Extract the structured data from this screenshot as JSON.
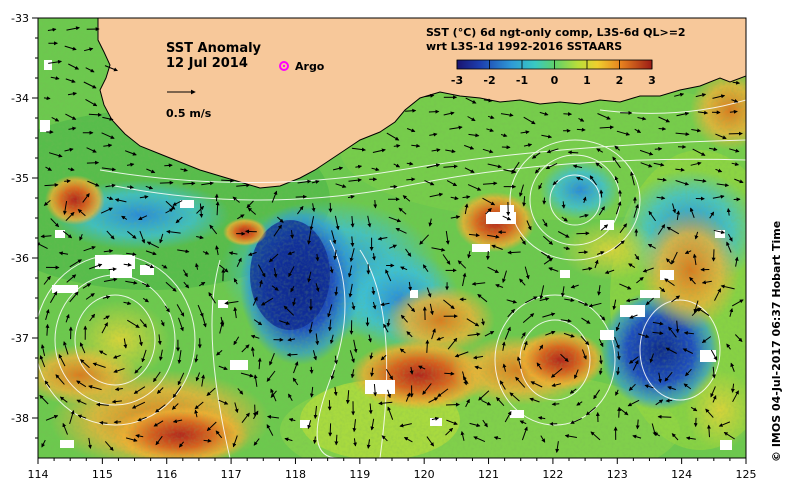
{
  "map": {
    "title": "SST Anomaly",
    "date": "12 Jul 2014",
    "argo_label": "Argo",
    "scale_label": "0.5 m/s",
    "colorbar_title_line1": "SST (°C) 6d ngt-only comp, L3S-6d QL>=2",
    "colorbar_title_line2": "wrt L3S-1d 1992-2016 SSTAARS",
    "colorbar_ticks": [
      "-3",
      "-2",
      "-1",
      "0",
      "1",
      "2",
      "3"
    ],
    "credit": "© IMOS 04-Jul-2017 06:37 Hobart Time",
    "lon_ticks": [
      "114",
      "115",
      "116",
      "117",
      "118",
      "119",
      "120",
      "121",
      "122",
      "123",
      "124",
      "125"
    ],
    "lat_ticks": [
      "-33",
      "-34",
      "-35",
      "-36",
      "-37",
      "-38"
    ],
    "colors": {
      "land": "#f7c89a",
      "argo_marker": "#ff00ff"
    },
    "icons": {
      "argo_marker": "argo-float-icon",
      "scale_arrow": "arrow-right-icon"
    }
  }
}
